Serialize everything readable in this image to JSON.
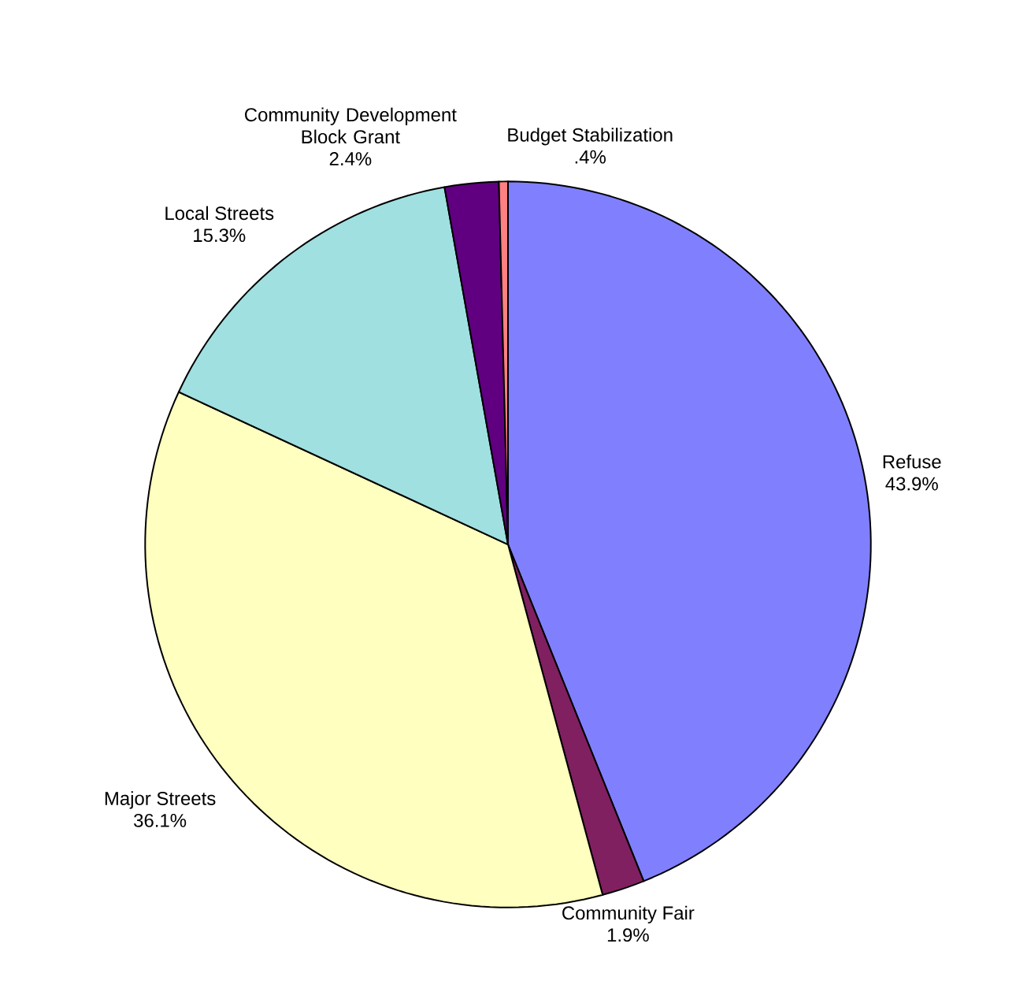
{
  "chart_data": {
    "type": "pie",
    "categories": [
      "Refuse",
      "Community Fair",
      "Major Streets",
      "Local Streets",
      "Community Development Block Grant",
      "Budget Stabilization"
    ],
    "values": [
      43.9,
      1.9,
      36.1,
      15.3,
      2.4,
      0.4
    ],
    "value_labels": [
      "43.9%",
      "1.9%",
      "36.1%",
      "15.3%",
      "2.4%",
      ".4%"
    ],
    "colors": [
      "#8080ff",
      "#802060",
      "#ffffc0",
      "#a0e0e0",
      "#600080",
      "#ff8080"
    ]
  }
}
